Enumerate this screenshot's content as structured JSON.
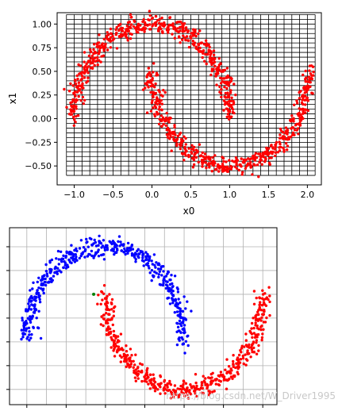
{
  "chart_data": [
    {
      "type": "scatter",
      "title": "",
      "xlabel": "x0",
      "ylabel": "x1",
      "xlim": [
        -1.22,
        2.18
      ],
      "ylim": [
        -0.7,
        1.12
      ],
      "xticks": [
        -1.0,
        -0.5,
        0.0,
        0.5,
        1.0,
        1.5,
        2.0
      ],
      "xtick_labels": [
        "−1.0",
        "−0.5",
        "0.0",
        "0.5",
        "1.0",
        "1.5",
        "2.0"
      ],
      "yticks": [
        1.0,
        0.75,
        0.5,
        0.25,
        0.0,
        -0.25,
        -0.5
      ],
      "ytick_labels": [
        "1.00",
        "0.75",
        "0.50",
        "0.25",
        "0.00",
        "−0.25",
        "−0.50"
      ],
      "grid": {
        "shown": true,
        "x_range": [
          -1.1,
          2.1
        ],
        "x_step": 0.1,
        "y_range": [
          -0.6,
          1.1
        ],
        "y_step": 0.05,
        "color": "#000000"
      },
      "colors": {
        "points": "#ff0000"
      },
      "series": [
        {
          "color": "#ff0000",
          "shape": "two interleaving half-moons",
          "n": 1000,
          "noise": 0.05
        }
      ]
    },
    {
      "type": "scatter",
      "title": "",
      "xlabel": "",
      "ylabel": "",
      "xlim": [
        -1.22,
        2.18
      ],
      "ylim": [
        -0.66,
        1.2
      ],
      "xtick_labels": [],
      "ytick_labels": [],
      "grid": {
        "shown": true,
        "color": "#b0b0b0"
      },
      "colors": {
        "upper_moon": "#0000ff",
        "lower_moon": "#ff0000",
        "marked_point": "#008000"
      },
      "series": [
        {
          "color": "#0000ff",
          "shape": "upper half-moon",
          "n": 500,
          "noise": 0.05
        },
        {
          "color": "#ff0000",
          "shape": "lower half-moon",
          "n": 500,
          "noise": 0.05
        },
        {
          "color": "#008000",
          "shape": "single point",
          "x": [
            -0.15
          ],
          "y": [
            0.5
          ]
        }
      ]
    }
  ],
  "watermark": "https://blog.csdn.net/W_Driver1995"
}
